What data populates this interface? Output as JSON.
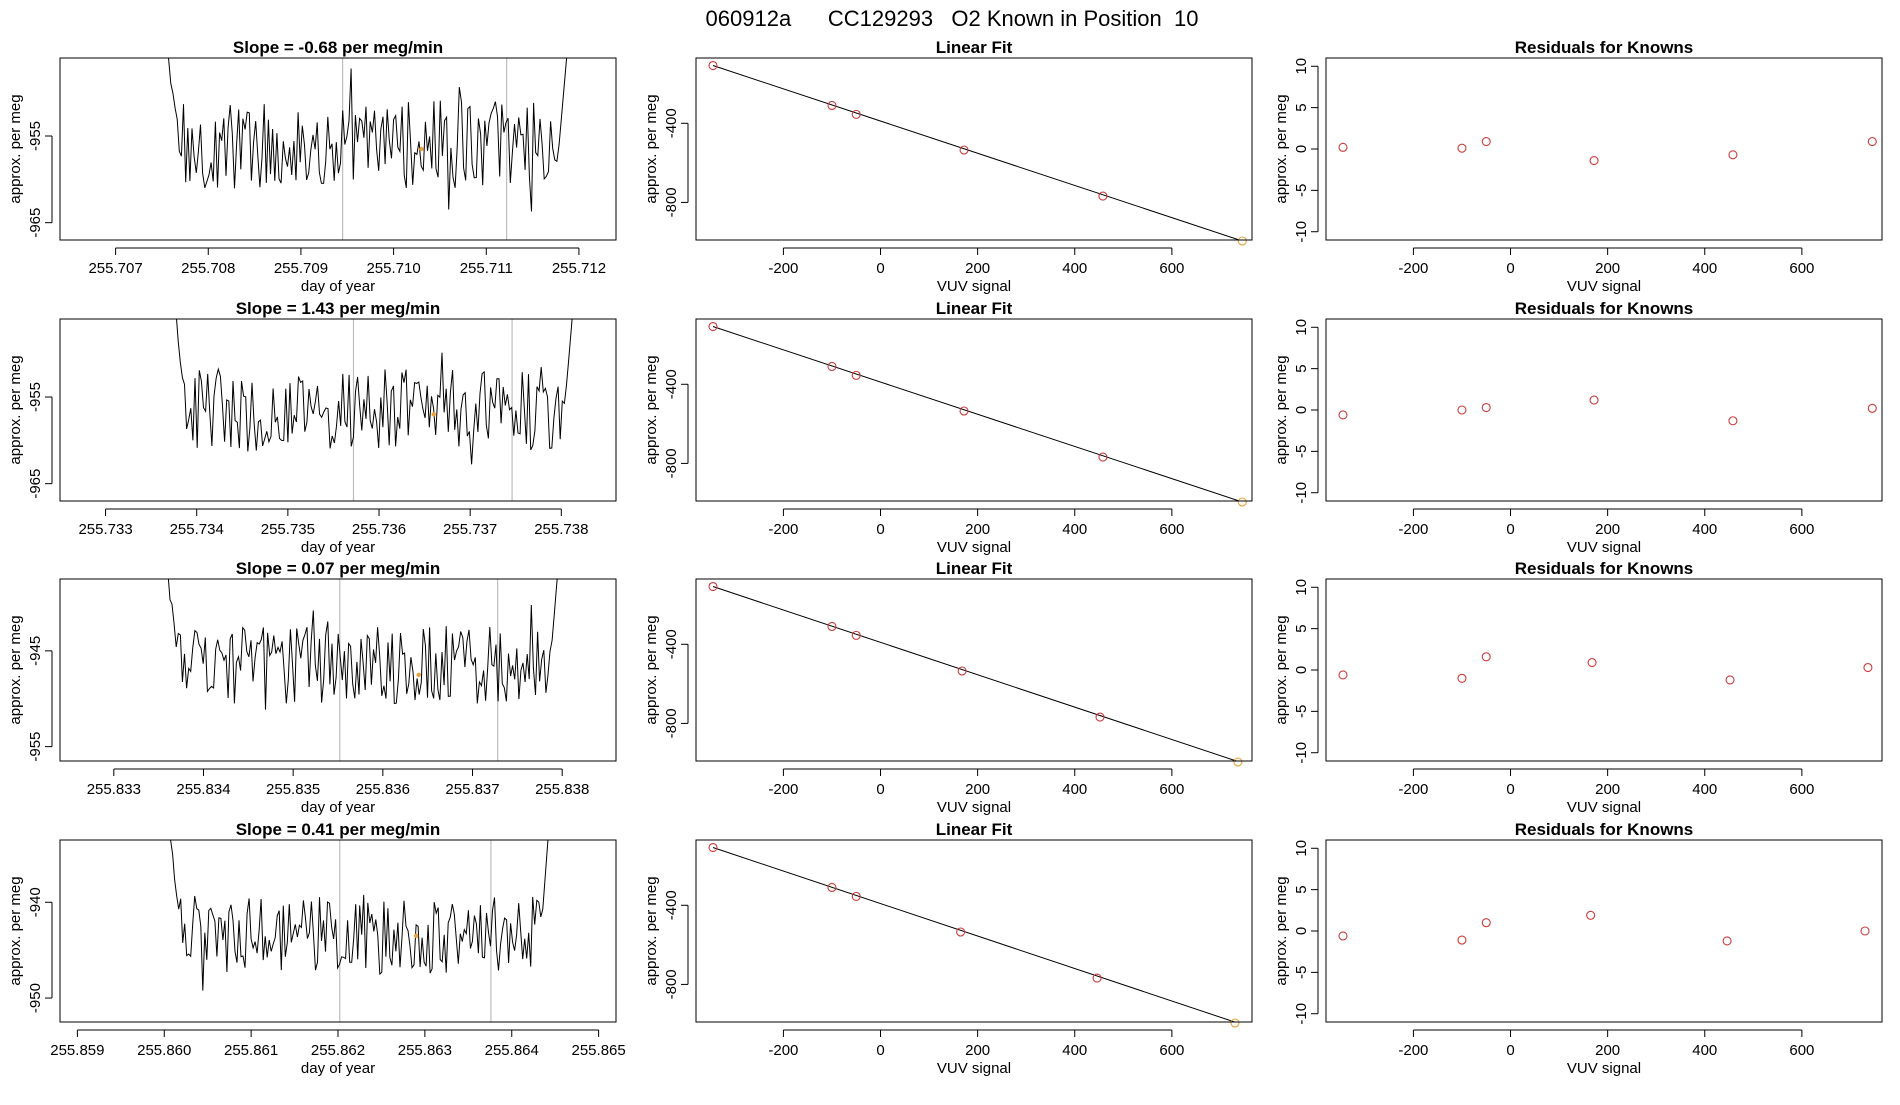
{
  "page_title": "060912a      CC129293   O2 Known in Position  10",
  "colors": {
    "trace": "#000000",
    "axis": "#000000",
    "vline": "#bebebe",
    "point": "#cd3b3b",
    "highlight": "#e8a33a"
  },
  "chart_data": [
    {
      "type": "line",
      "row": 1,
      "title": "Slope =  -0.68  per meg/min",
      "xlabel": "day of year",
      "ylabel": "approx. per meg",
      "xlim": [
        255.7064,
        255.7124
      ],
      "ylim": [
        -967,
        -946
      ],
      "xticks": [
        255.707,
        255.708,
        255.709,
        255.71,
        255.711,
        255.712
      ],
      "xtick_labels": [
        "255.707",
        "255.708",
        "255.709",
        "255.710",
        "255.711",
        "255.712"
      ],
      "yticks": [
        -955,
        -965
      ],
      "ytick_labels": [
        "-955",
        "-965"
      ],
      "vlines": [
        255.70945,
        255.71122
      ],
      "x_start": 255.70755,
      "x_end": 255.7119,
      "y_mean": -956,
      "y_spread": 3.2,
      "highlight": {
        "x": 255.7103,
        "y": -956.5
      }
    },
    {
      "type": "scatter",
      "row": 1,
      "title": "Linear Fit",
      "xlabel": "VUV signal",
      "ylabel": "approx. per meg",
      "xlim": [
        -380,
        765
      ],
      "ylim": [
        -990,
        -70
      ],
      "xticks": [
        -200,
        0,
        200,
        400,
        600
      ],
      "xtick_labels": [
        "-200",
        "0",
        "200",
        "400",
        "600"
      ],
      "yticks": [
        -400,
        -800
      ],
      "ytick_labels": [
        "-400",
        "-800"
      ],
      "x": [
        -345,
        -100,
        -50,
        172,
        458,
        745
      ],
      "y": [
        -108,
        -310,
        -355,
        -535,
        -768,
        -995
      ],
      "fit": [
        [
          -345,
          -108
        ],
        [
          745,
          -995
        ]
      ]
    },
    {
      "type": "scatter",
      "row": 1,
      "title": "Residuals for Knowns",
      "xlabel": "VUV signal",
      "ylabel": "approx. per meg",
      "xlim": [
        -380,
        765
      ],
      "ylim": [
        -11,
        11
      ],
      "xticks": [
        -200,
        0,
        200,
        400,
        600
      ],
      "xtick_labels": [
        "-200",
        "0",
        "200",
        "400",
        "600"
      ],
      "yticks": [
        10,
        5,
        0,
        -5,
        -10
      ],
      "ytick_labels": [
        "10",
        "5",
        "0",
        "-5",
        "-10"
      ],
      "x": [
        -345,
        -100,
        -50,
        172,
        458,
        745
      ],
      "y": [
        0.2,
        0.1,
        0.9,
        -1.4,
        -0.7,
        0.9
      ]
    },
    {
      "type": "line",
      "row": 2,
      "title": "Slope =  1.43  per meg/min",
      "xlabel": "day of year",
      "ylabel": "approx. per meg",
      "xlim": [
        255.7325,
        255.7386
      ],
      "ylim": [
        -967,
        -946
      ],
      "xticks": [
        255.733,
        255.734,
        255.735,
        255.736,
        255.737,
        255.738
      ],
      "xtick_labels": [
        "255.733",
        "255.734",
        "255.735",
        "255.736",
        "255.737",
        "255.738"
      ],
      "yticks": [
        -955,
        -965
      ],
      "ytick_labels": [
        "-955",
        "-965"
      ],
      "vlines": [
        255.73572,
        255.73746
      ],
      "x_start": 255.73375,
      "x_end": 255.73815,
      "y_mean": -956.5,
      "y_spread": 3.0,
      "highlight": {
        "x": 255.7366,
        "y": -957
      }
    },
    {
      "type": "scatter",
      "row": 2,
      "title": "Linear Fit",
      "xlabel": "VUV signal",
      "ylabel": "approx. per meg",
      "xlim": [
        -380,
        765
      ],
      "ylim": [
        -990,
        -70
      ],
      "xticks": [
        -200,
        0,
        200,
        400,
        600
      ],
      "xtick_labels": [
        "-200",
        "0",
        "200",
        "400",
        "600"
      ],
      "yticks": [
        -400,
        -800
      ],
      "ytick_labels": [
        "-400",
        "-800"
      ],
      "x": [
        -345,
        -100,
        -50,
        172,
        458,
        745
      ],
      "y": [
        -108,
        -310,
        -355,
        -535,
        -768,
        -995
      ],
      "fit": [
        [
          -345,
          -108
        ],
        [
          745,
          -995
        ]
      ]
    },
    {
      "type": "scatter",
      "row": 2,
      "title": "Residuals for Knowns",
      "xlabel": "VUV signal",
      "ylabel": "approx. per meg",
      "xlim": [
        -380,
        765
      ],
      "ylim": [
        -11,
        11
      ],
      "xticks": [
        -200,
        0,
        200,
        400,
        600
      ],
      "xtick_labels": [
        "-200",
        "0",
        "200",
        "400",
        "600"
      ],
      "yticks": [
        10,
        5,
        0,
        -5,
        -10
      ],
      "ytick_labels": [
        "10",
        "5",
        "0",
        "-5",
        "-10"
      ],
      "x": [
        -345,
        -100,
        -50,
        172,
        458,
        745
      ],
      "y": [
        -0.6,
        0.0,
        0.3,
        1.2,
        -1.3,
        0.2
      ]
    },
    {
      "type": "line",
      "row": 3,
      "title": "Slope =  0.07  per meg/min",
      "xlabel": "day of year",
      "ylabel": "approx. per meg",
      "xlim": [
        255.8324,
        255.8386
      ],
      "ylim": [
        -956.5,
        -937.5
      ],
      "xticks": [
        255.833,
        255.834,
        255.835,
        255.836,
        255.837,
        255.838
      ],
      "xtick_labels": [
        "255.833",
        "255.834",
        "255.835",
        "255.836",
        "255.837",
        "255.838"
      ],
      "yticks": [
        -945,
        -955
      ],
      "ytick_labels": [
        "-945",
        "-955"
      ],
      "vlines": [
        255.83552,
        255.83728
      ],
      "x_start": 255.83358,
      "x_end": 255.83798,
      "y_mean": -946.5,
      "y_spread": 2.5,
      "highlight": {
        "x": 255.8364,
        "y": -947.5
      }
    },
    {
      "type": "scatter",
      "row": 3,
      "title": "Linear Fit",
      "xlabel": "VUV signal",
      "ylabel": "approx. per meg",
      "xlim": [
        -380,
        765
      ],
      "ylim": [
        -990,
        -70
      ],
      "xticks": [
        -200,
        0,
        200,
        400,
        600
      ],
      "xtick_labels": [
        "-200",
        "0",
        "200",
        "400",
        "600"
      ],
      "yticks": [
        -400,
        -800
      ],
      "ytick_labels": [
        "-400",
        "-800"
      ],
      "x": [
        -345,
        -100,
        -50,
        168,
        452,
        736
      ],
      "y": [
        -108,
        -310,
        -355,
        -535,
        -768,
        -995
      ],
      "fit": [
        [
          -345,
          -108
        ],
        [
          745,
          -1000
        ]
      ]
    },
    {
      "type": "scatter",
      "row": 3,
      "title": "Residuals for Knowns",
      "xlabel": "VUV signal",
      "ylabel": "approx. per meg",
      "xlim": [
        -380,
        765
      ],
      "ylim": [
        -11,
        11
      ],
      "xticks": [
        -200,
        0,
        200,
        400,
        600
      ],
      "xtick_labels": [
        "-200",
        "0",
        "200",
        "400",
        "600"
      ],
      "yticks": [
        10,
        5,
        0,
        -5,
        -10
      ],
      "ytick_labels": [
        "10",
        "5",
        "0",
        "-5",
        "-10"
      ],
      "x": [
        -345,
        -100,
        -50,
        168,
        452,
        736
      ],
      "y": [
        -0.6,
        -1.0,
        1.6,
        0.9,
        -1.2,
        0.3
      ]
    },
    {
      "type": "line",
      "row": 4,
      "title": "Slope =  0.41  per meg/min",
      "xlabel": "day of year",
      "ylabel": "approx. per meg",
      "xlim": [
        255.8588,
        255.8652
      ],
      "ylim": [
        -952.5,
        -933.5
      ],
      "xticks": [
        255.859,
        255.86,
        255.861,
        255.862,
        255.863,
        255.864,
        255.865
      ],
      "xtick_labels": [
        "255.859",
        "255.860",
        "255.861",
        "255.862",
        "255.863",
        "255.864",
        "255.865"
      ],
      "yticks": [
        -940,
        -950
      ],
      "ytick_labels": [
        "-940",
        "-950"
      ],
      "vlines": [
        255.86202,
        255.86376
      ],
      "x_start": 255.86005,
      "x_end": 255.86445,
      "y_mean": -943.5,
      "y_spread": 2.6,
      "highlight": {
        "x": 255.8629,
        "y": -943.5
      }
    },
    {
      "type": "scatter",
      "row": 4,
      "title": "Linear Fit",
      "xlabel": "VUV signal",
      "ylabel": "approx. per meg",
      "xlim": [
        -380,
        765
      ],
      "ylim": [
        -990,
        -70
      ],
      "xticks": [
        -200,
        0,
        200,
        400,
        600
      ],
      "xtick_labels": [
        "-200",
        "0",
        "200",
        "400",
        "600"
      ],
      "yticks": [
        -400,
        -800
      ],
      "ytick_labels": [
        "-400",
        "-800"
      ],
      "x": [
        -345,
        -100,
        -50,
        165,
        446,
        730
      ],
      "y": [
        -108,
        -310,
        -355,
        -535,
        -768,
        -995
      ],
      "fit": [
        [
          -345,
          -108
        ],
        [
          745,
          -1003
        ]
      ]
    },
    {
      "type": "scatter",
      "row": 4,
      "title": "Residuals for Knowns",
      "xlabel": "VUV signal",
      "ylabel": "approx. per meg",
      "xlim": [
        -380,
        765
      ],
      "ylim": [
        -11,
        11
      ],
      "xticks": [
        -200,
        0,
        200,
        400,
        600
      ],
      "xtick_labels": [
        "-200",
        "0",
        "200",
        "400",
        "600"
      ],
      "yticks": [
        10,
        5,
        0,
        -5,
        -10
      ],
      "ytick_labels": [
        "10",
        "5",
        "0",
        "-5",
        "-10"
      ],
      "x": [
        -345,
        -100,
        -50,
        165,
        446,
        730
      ],
      "y": [
        -0.6,
        -1.1,
        1.0,
        1.9,
        -1.2,
        0.0
      ]
    }
  ]
}
